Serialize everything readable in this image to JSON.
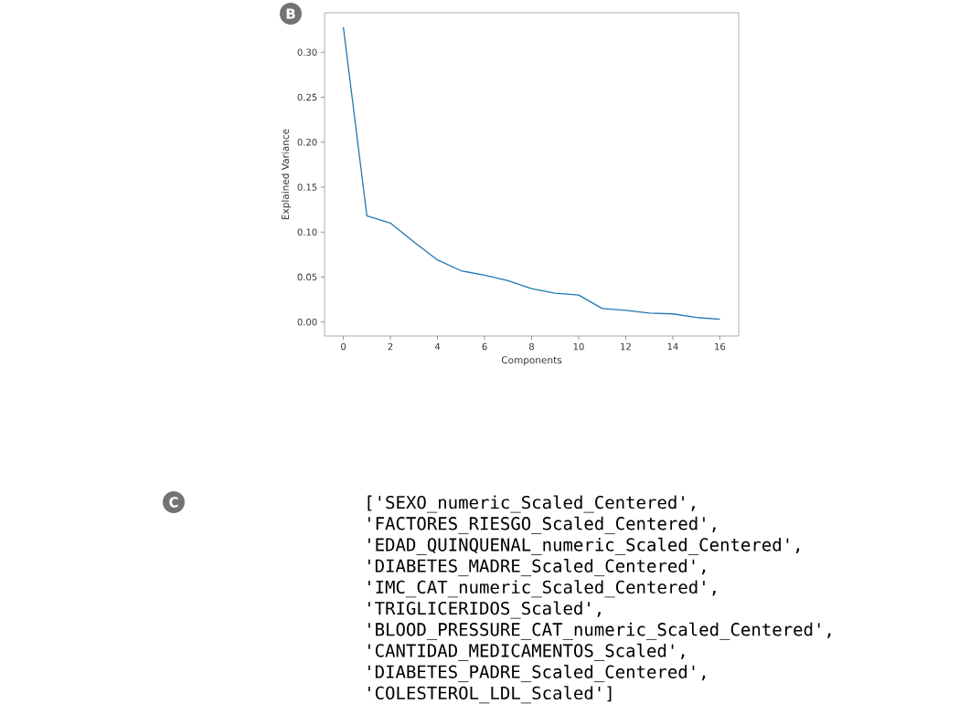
{
  "chart_data": [
    {
      "type": "line",
      "title": "B",
      "xlabel": "Components",
      "ylabel": "Explained Variance",
      "color": "#1f77b4",
      "x": [
        0,
        1,
        2,
        3,
        4,
        5,
        6,
        7,
        8,
        9,
        10,
        11,
        12,
        13,
        14,
        15,
        16
      ],
      "values": [
        0.328,
        0.118,
        0.11,
        0.089,
        0.069,
        0.057,
        0.052,
        0.046,
        0.037,
        0.032,
        0.03,
        0.015,
        0.013,
        0.01,
        0.009,
        0.005,
        0.003
      ],
      "xlim": [
        -0.8,
        16.8
      ],
      "ylim": [
        -0.0156,
        0.344
      ],
      "xticks": [
        0,
        2,
        4,
        6,
        8,
        10,
        12,
        14,
        16
      ],
      "yticks": [
        {
          "value": 0,
          "label": "0.00"
        },
        {
          "value": 0.05,
          "label": "0.05"
        },
        {
          "value": 0.1,
          "label": "0.10"
        },
        {
          "value": 0.15,
          "label": "0.15"
        },
        {
          "value": 0.2,
          "label": "0.20"
        },
        {
          "value": 0.25,
          "label": "0.25"
        },
        {
          "value": 0.3,
          "label": "0.30"
        }
      ]
    },
    {
      "type": "other",
      "title": "C",
      "annotations": [
        "['SEXO_numeric_Scaled_Centered',",
        "'FACTORES_RIESGO_Scaled_Centered',",
        "'EDAD_QUINQUENAL_numeric_Scaled_Centered',",
        "'DIABETES_MADRE_Scaled_Centered',",
        "'IMC_CAT_numeric_Scaled_Centered',",
        "'TRIGLICERIDOS_Scaled',",
        "'BLOOD_PRESSURE_CAT_numeric_Scaled_Centered',",
        "'CANTIDAD_MEDICAMENTOS_Scaled',",
        "'DIABETES_PADRE_Scaled_Centered',",
        "'COLESTEROL_LDL_Scaled']"
      ]
    }
  ]
}
